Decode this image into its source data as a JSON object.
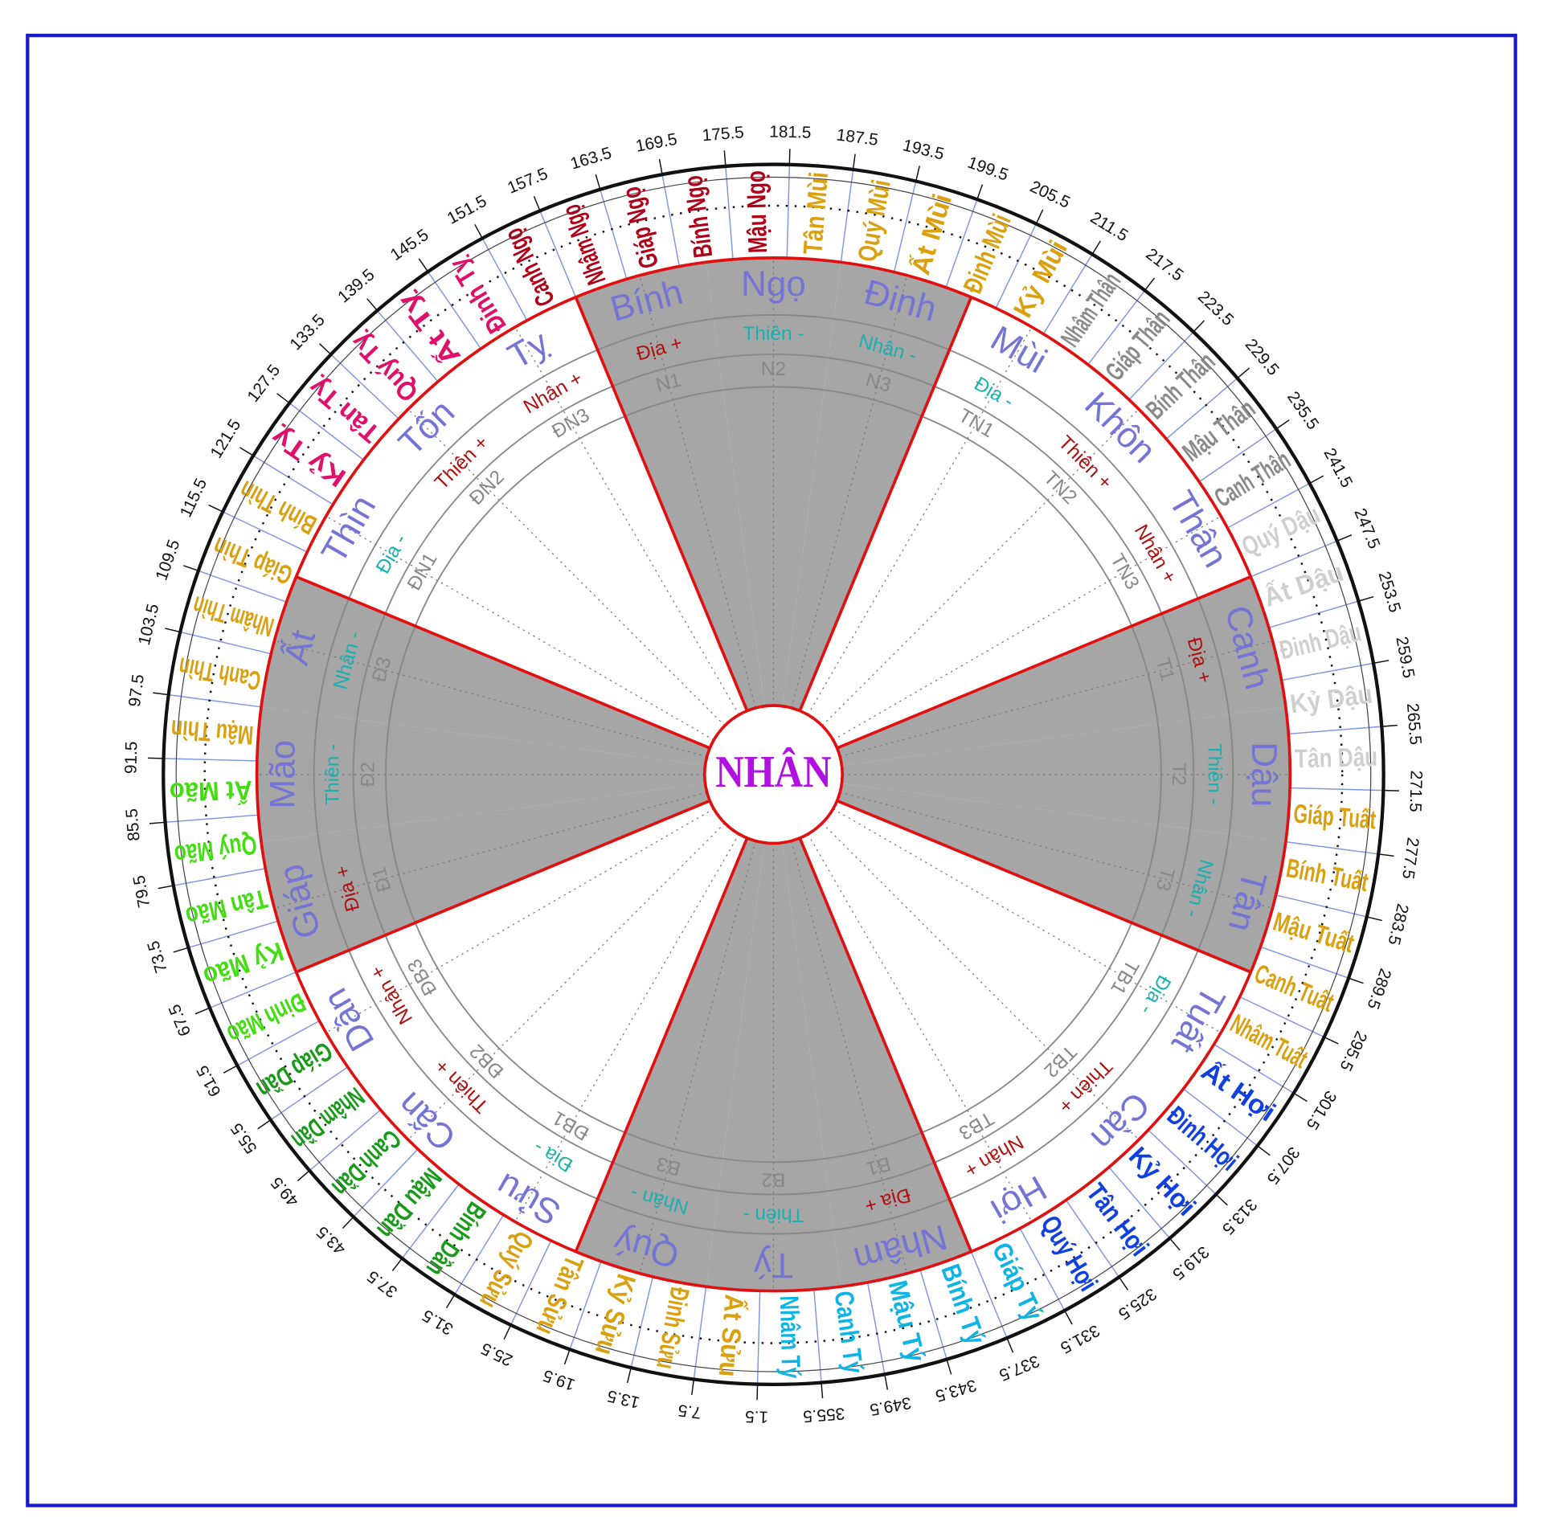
{
  "center": "NHÂN",
  "mountains": [
    {
      "name": "Tý",
      "attribute": "Thiên -",
      "attribute_color": "#1ab0b0",
      "code": "B2",
      "shaded": true
    },
    {
      "name": "Quý",
      "attribute": "Nhân -",
      "attribute_color": "#1ab0b0",
      "code": "B3",
      "shaded": true
    },
    {
      "name": "Sửu",
      "attribute": "Địa -",
      "attribute_color": "#1ab0b0",
      "code": "ĐB1",
      "shaded": false
    },
    {
      "name": "Cấn",
      "attribute": "Thiên +",
      "attribute_color": "#b01010",
      "code": "ĐB2",
      "shaded": false
    },
    {
      "name": "Dần",
      "attribute": "Nhân +",
      "attribute_color": "#b01010",
      "code": "ĐB3",
      "shaded": false
    },
    {
      "name": "Giáp",
      "attribute": "Địa +",
      "attribute_color": "#b01010",
      "code": "Đ1",
      "shaded": true
    },
    {
      "name": "Mão",
      "attribute": "Thiên -",
      "attribute_color": "#1ab0b0",
      "code": "Đ2",
      "shaded": true
    },
    {
      "name": "Ất",
      "attribute": "Nhân -",
      "attribute_color": "#1ab0b0",
      "code": "Đ3",
      "shaded": true
    },
    {
      "name": "Thìn",
      "attribute": "Địa -",
      "attribute_color": "#1ab0b0",
      "code": "ĐN1",
      "shaded": false
    },
    {
      "name": "Tốn",
      "attribute": "Thiên +",
      "attribute_color": "#b01010",
      "code": "ĐN2",
      "shaded": false
    },
    {
      "name": "Tỵ",
      "attribute": "Nhân +",
      "attribute_color": "#b01010",
      "code": "ĐN3",
      "shaded": false
    },
    {
      "name": "Bính",
      "attribute": "Địa +",
      "attribute_color": "#b01010",
      "code": "N1",
      "shaded": true
    },
    {
      "name": "Ngọ",
      "attribute": "Thiên -",
      "attribute_color": "#1ab0b0",
      "code": "N2",
      "shaded": true
    },
    {
      "name": "Đinh",
      "attribute": "Nhân -",
      "attribute_color": "#1ab0b0",
      "code": "N3",
      "shaded": true
    },
    {
      "name": "Mùi",
      "attribute": "Địa -",
      "attribute_color": "#1ab0b0",
      "code": "TN1",
      "shaded": false
    },
    {
      "name": "Khôn",
      "attribute": "Thiên +",
      "attribute_color": "#b01010",
      "code": "TN2",
      "shaded": false
    },
    {
      "name": "Thân",
      "attribute": "Nhân +",
      "attribute_color": "#b01010",
      "code": "TN3",
      "shaded": false
    },
    {
      "name": "Canh",
      "attribute": "Địa +",
      "attribute_color": "#b01010",
      "code": "T1",
      "shaded": true
    },
    {
      "name": "Dậu",
      "attribute": "Thiên -",
      "attribute_color": "#1ab0b0",
      "code": "T2",
      "shaded": true
    },
    {
      "name": "Tân",
      "attribute": "Nhân -",
      "attribute_color": "#1ab0b0",
      "code": "T3",
      "shaded": true
    },
    {
      "name": "Tuất",
      "attribute": "Địa -",
      "attribute_color": "#1ab0b0",
      "code": "TB1",
      "shaded": false
    },
    {
      "name": "Càn",
      "attribute": "Thiên +",
      "attribute_color": "#b01010",
      "code": "TB2",
      "shaded": false
    },
    {
      "name": "Hợi",
      "attribute": "Nhân +",
      "attribute_color": "#b01010",
      "code": "TB3",
      "shaded": false
    },
    {
      "name": "Nhâm",
      "attribute": "Địa +",
      "attribute_color": "#b01010",
      "code": "B1",
      "shaded": true
    }
  ],
  "cycle60": [
    {
      "name": "Ất Sửu",
      "color": "#d9a010"
    },
    {
      "name": "Đinh Sửu",
      "color": "#d9a010"
    },
    {
      "name": "Kỷ Sửu",
      "color": "#d9a010"
    },
    {
      "name": "Tân Sửu",
      "color": "#d9a010"
    },
    {
      "name": "Quý Sửu",
      "color": "#d9a010"
    },
    {
      "name": "Bính Dần",
      "color": "#1a9a1a"
    },
    {
      "name": "Mậu Dần",
      "color": "#1a9a1a"
    },
    {
      "name": "Canh Dần",
      "color": "#1a9a1a"
    },
    {
      "name": "Nhâm Dần",
      "color": "#1a9a1a"
    },
    {
      "name": "Giáp Dần",
      "color": "#1a9a1a"
    },
    {
      "name": "Đinh Mão",
      "color": "#44dd11"
    },
    {
      "name": "Kỷ Mão",
      "color": "#44dd11"
    },
    {
      "name": "Tân Mão",
      "color": "#44dd11"
    },
    {
      "name": "Quý Mão",
      "color": "#44dd11"
    },
    {
      "name": "Ất Mão",
      "color": "#44dd11"
    },
    {
      "name": "Mậu Thìn",
      "color": "#d9a010"
    },
    {
      "name": "Canh Thìn",
      "color": "#d9a010"
    },
    {
      "name": "Nhâm Thìn",
      "color": "#d9a010"
    },
    {
      "name": "Giáp Thìn",
      "color": "#d9a010"
    },
    {
      "name": "Bính Thìn",
      "color": "#d9a010"
    },
    {
      "name": "Kỷ Tỵ",
      "color": "#e0106a"
    },
    {
      "name": "Tân Tỵ",
      "color": "#e0106a"
    },
    {
      "name": "Quý Tỵ",
      "color": "#e0106a"
    },
    {
      "name": "Ất Tỵ",
      "color": "#e0106a"
    },
    {
      "name": "Đinh Tỵ",
      "color": "#e0106a"
    },
    {
      "name": "Canh Ngọ",
      "color": "#b00018"
    },
    {
      "name": "Nhâm Ngọ",
      "color": "#b00018"
    },
    {
      "name": "Giáp Ngọ",
      "color": "#b00018"
    },
    {
      "name": "Bính Ngọ",
      "color": "#b00018"
    },
    {
      "name": "Mậu Ngọ",
      "color": "#b00018"
    },
    {
      "name": "Tân Mùi",
      "color": "#d9a010"
    },
    {
      "name": "Quý Mùi",
      "color": "#d9a010"
    },
    {
      "name": "Ất Mùi",
      "color": "#d9a010"
    },
    {
      "name": "Đinh Mùi",
      "color": "#d9a010"
    },
    {
      "name": "Kỷ Mùi",
      "color": "#d9a010"
    },
    {
      "name": "Nhâm Thân",
      "color": "#8a8a8a"
    },
    {
      "name": "Giáp Thân",
      "color": "#8a8a8a"
    },
    {
      "name": "Bính Thân",
      "color": "#8a8a8a"
    },
    {
      "name": "Mậu Thân",
      "color": "#8a8a8a"
    },
    {
      "name": "Canh Thân",
      "color": "#8a8a8a"
    },
    {
      "name": "Quý Dậu",
      "color": "#cfcfcf"
    },
    {
      "name": "Ất Dậu",
      "color": "#cfcfcf"
    },
    {
      "name": "Đinh Dậu",
      "color": "#cfcfcf"
    },
    {
      "name": "Kỷ Dậu",
      "color": "#cfcfcf"
    },
    {
      "name": "Tân Dậu",
      "color": "#cfcfcf"
    },
    {
      "name": "Giáp Tuất",
      "color": "#d9a010"
    },
    {
      "name": "Bính Tuất",
      "color": "#d9a010"
    },
    {
      "name": "Mậu Tuất",
      "color": "#d9a010"
    },
    {
      "name": "Canh Tuất",
      "color": "#d9a010"
    },
    {
      "name": "Nhâm Tuất",
      "color": "#d9a010"
    },
    {
      "name": "Ất Hợi",
      "color": "#1040e0"
    },
    {
      "name": "Đinh Hợi",
      "color": "#1040e0"
    },
    {
      "name": "Kỷ Hợi",
      "color": "#1040e0"
    },
    {
      "name": "Tân Hợi",
      "color": "#1040e0"
    },
    {
      "name": "Quý Hợi",
      "color": "#1040e0"
    },
    {
      "name": "Giáp Tý",
      "color": "#10b4e4"
    },
    {
      "name": "Bính Tý",
      "color": "#10b4e4"
    },
    {
      "name": "Mậu Tý",
      "color": "#10b4e4"
    },
    {
      "name": "Canh Tý",
      "color": "#10b4e4"
    },
    {
      "name": "Nhâm Tý",
      "color": "#10b4e4"
    }
  ],
  "degree_labels": [
    1.5,
    7.5,
    13.5,
    19.5,
    25.5,
    31.5,
    37.5,
    43.5,
    49.5,
    55.5,
    61.5,
    67.5,
    73.5,
    79.5,
    85.5,
    91.5,
    97.5,
    103.5,
    109.5,
    115.5,
    121.5,
    127.5,
    133.5,
    139.5,
    145.5,
    151.5,
    157.5,
    163.5,
    169.5,
    175.5,
    181.5,
    187.5,
    193.5,
    199.5,
    205.5,
    211.5,
    217.5,
    223.5,
    229.5,
    235.5,
    241.5,
    247.5,
    253.5,
    259.5,
    265.5,
    271.5,
    277.5,
    283.5,
    289.5,
    295.5,
    301.5,
    307.5,
    313.5,
    319.5,
    325.5,
    331.5,
    337.5,
    343.5,
    349.5,
    355.5
  ]
}
